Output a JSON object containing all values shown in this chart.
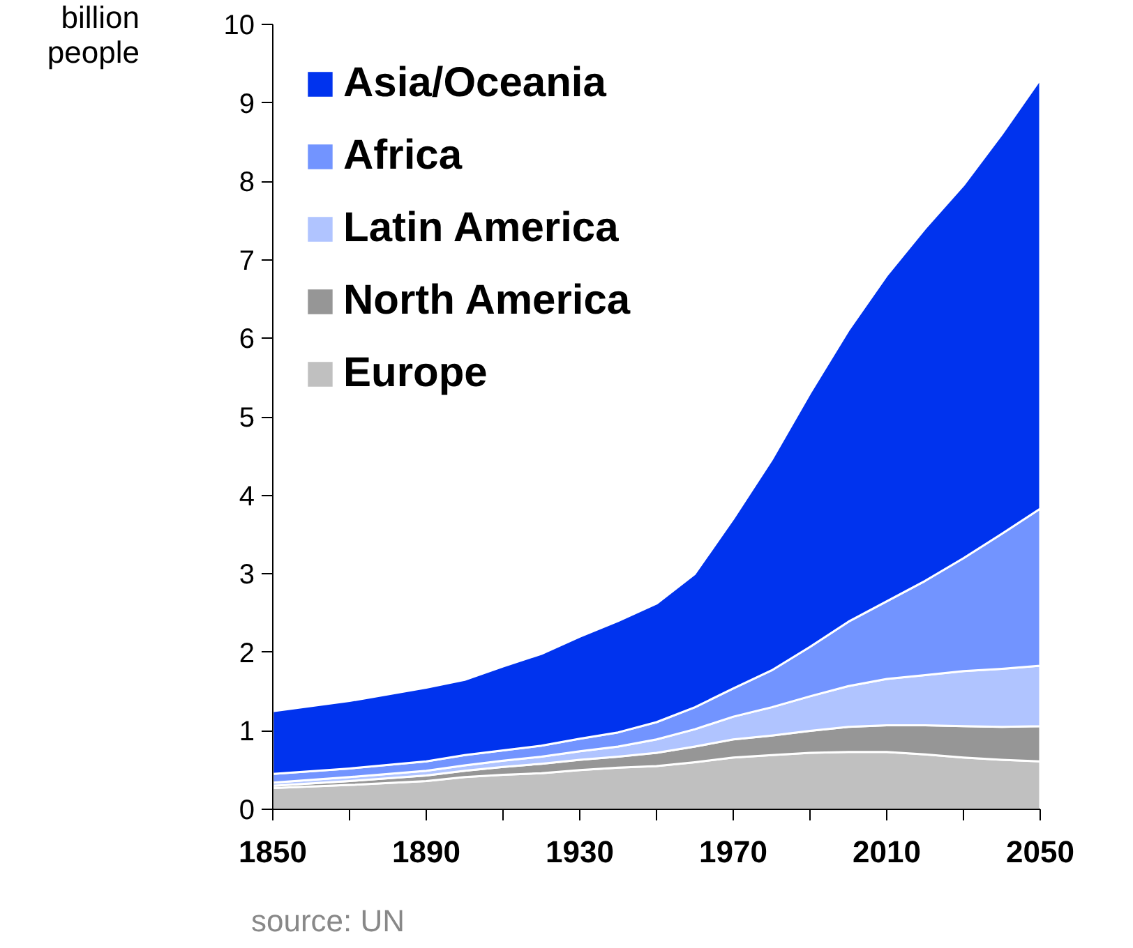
{
  "chart_data": {
    "type": "area",
    "stacked": true,
    "ylabel": "billion\npeople",
    "annotations": [
      "source: UN"
    ],
    "x": [
      1850,
      1870,
      1890,
      1900,
      1910,
      1920,
      1930,
      1940,
      1950,
      1960,
      1970,
      1980,
      1990,
      2000,
      2010,
      2020,
      2030,
      2040,
      2050
    ],
    "xlim": [
      1850,
      2050
    ],
    "xticks": [
      1850,
      {
        "value": 1870,
        "label": null
      },
      1890,
      {
        "value": 1910,
        "label": null
      },
      1930,
      {
        "value": 1950,
        "label": null
      },
      1970,
      {
        "value": 1990,
        "label": null
      },
      2010,
      {
        "value": 2030,
        "label": null
      },
      2050
    ],
    "ylim": [
      0,
      10
    ],
    "yticks": [
      0,
      1,
      2,
      3,
      4,
      5,
      6,
      7,
      8,
      9,
      10
    ],
    "grid": false,
    "legend": "top left",
    "series": [
      {
        "name": "Europe",
        "color": "#c0c0c0",
        "values": [
          0.27,
          0.31,
          0.36,
          0.41,
          0.44,
          0.46,
          0.5,
          0.53,
          0.55,
          0.6,
          0.66,
          0.69,
          0.72,
          0.73,
          0.73,
          0.7,
          0.66,
          0.63,
          0.61
        ]
      },
      {
        "name": "North America",
        "color": "#969696",
        "values": [
          0.03,
          0.05,
          0.07,
          0.08,
          0.1,
          0.12,
          0.13,
          0.14,
          0.17,
          0.2,
          0.23,
          0.25,
          0.28,
          0.32,
          0.34,
          0.37,
          0.4,
          0.42,
          0.45
        ]
      },
      {
        "name": "Latin America",
        "color": "#b0c4ff",
        "values": [
          0.04,
          0.05,
          0.06,
          0.07,
          0.08,
          0.09,
          0.11,
          0.13,
          0.17,
          0.22,
          0.29,
          0.36,
          0.44,
          0.52,
          0.59,
          0.64,
          0.7,
          0.74,
          0.77
        ]
      },
      {
        "name": "Africa",
        "color": "#7294ff",
        "values": [
          0.11,
          0.11,
          0.12,
          0.13,
          0.13,
          0.14,
          0.16,
          0.18,
          0.22,
          0.28,
          0.36,
          0.47,
          0.63,
          0.82,
          0.99,
          1.2,
          1.44,
          1.72,
          2.0
        ]
      },
      {
        "name": "Asia/Oceania",
        "color": "#0033ee",
        "values": [
          0.8,
          0.86,
          0.94,
          0.96,
          1.07,
          1.17,
          1.3,
          1.42,
          1.51,
          1.7,
          2.16,
          2.68,
          3.23,
          3.71,
          4.15,
          4.49,
          4.75,
          5.09,
          5.47
        ]
      }
    ]
  }
}
